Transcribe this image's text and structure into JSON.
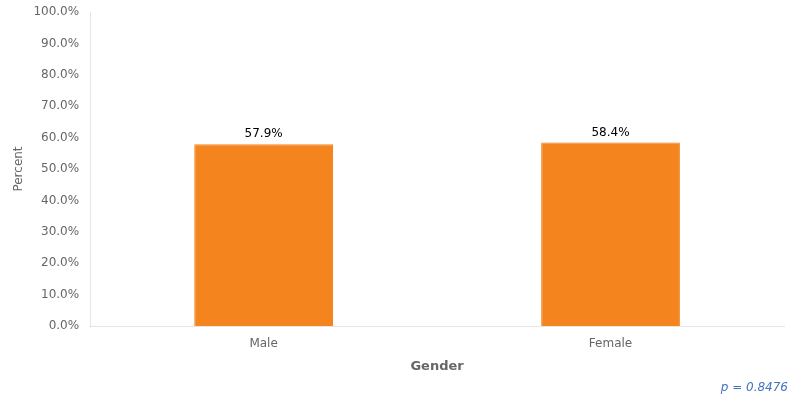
{
  "chart_data": {
    "type": "bar",
    "categories": [
      "Male",
      "Female"
    ],
    "values": [
      57.9,
      58.4
    ],
    "value_labels": [
      "57.9%",
      "58.4%"
    ],
    "data_labels": true,
    "color": "#F4841E",
    "xlabel": "Gender",
    "ylabel": "Percent",
    "ylim": [
      0,
      100
    ],
    "yticks": [
      {
        "value": 0,
        "label": "0.0%"
      },
      {
        "value": 10,
        "label": "10.0%"
      },
      {
        "value": 20,
        "label": "20.0%"
      },
      {
        "value": 30,
        "label": "30.0%"
      },
      {
        "value": 40,
        "label": "40.0%"
      },
      {
        "value": 50,
        "label": "50.0%"
      },
      {
        "value": 60,
        "label": "60.0%"
      },
      {
        "value": 70,
        "label": "70.0%"
      },
      {
        "value": 80,
        "label": "80.0%"
      },
      {
        "value": 90,
        "label": "90.0%"
      },
      {
        "value": 100,
        "label": "100.0%"
      }
    ],
    "grid": false,
    "annotations": [
      {
        "text": "p = 0.8476",
        "color": "#4472C4"
      }
    ]
  }
}
